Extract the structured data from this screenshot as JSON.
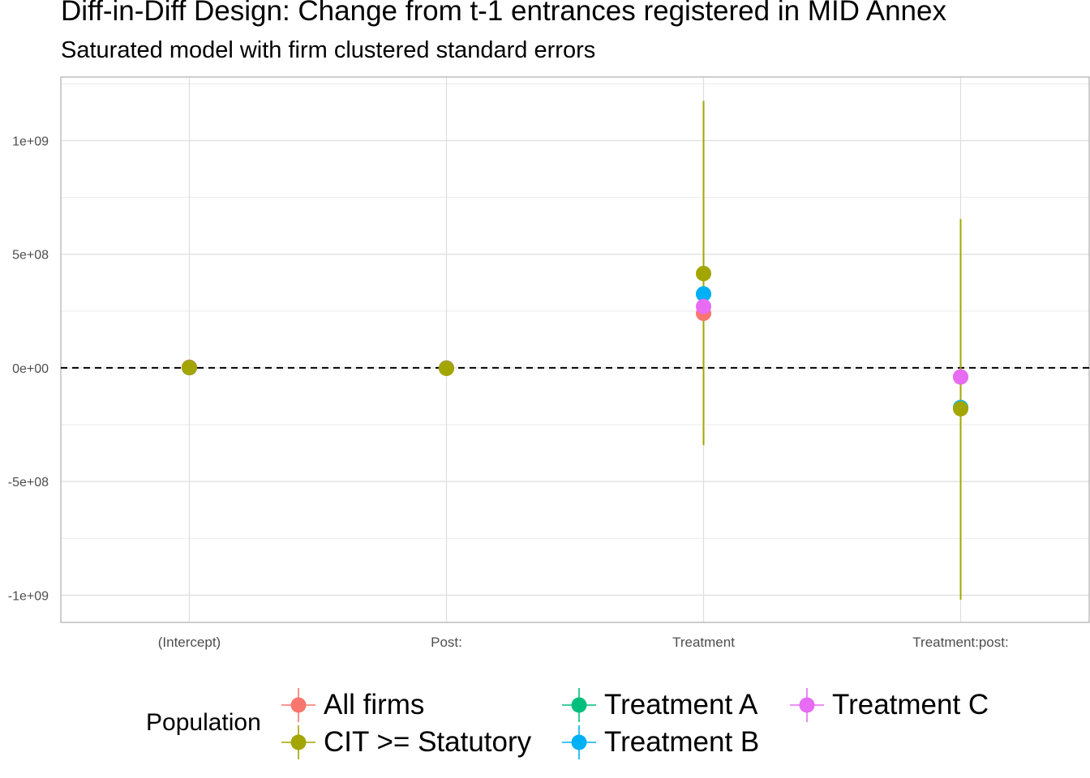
{
  "chart_data": {
    "type": "scatter",
    "title": "Diff-in-Diff Design: Change from t-1 entrances registered in MID Annex",
    "subtitle": "Saturated model with firm clustered standard errors",
    "categories": [
      "(Intercept)",
      "Post:",
      "Treatment",
      "Treatment:post:"
    ],
    "ylim": [
      -1120000000.0,
      1280000000.0
    ],
    "y_ticks": [
      {
        "value": 1000000000.0,
        "label": "1e+09"
      },
      {
        "value": 500000000.0,
        "label": "5e+08"
      },
      {
        "value": 0,
        "label": "0e+00"
      },
      {
        "value": -500000000.0,
        "label": "-5e+08"
      },
      {
        "value": -1000000000.0,
        "label": "-1e+09"
      }
    ],
    "reference_line": {
      "value": 0,
      "style": "dashed"
    },
    "grid": true,
    "legend": {
      "title": "Population",
      "position": "bottom"
    },
    "series": [
      {
        "name": "All firms",
        "color": "#F8766D",
        "values": [
          3000000,
          -1000000,
          240000000,
          -40000000
        ],
        "ci": [
          null,
          null,
          null,
          null
        ]
      },
      {
        "name": "Treatment A",
        "color": "#00BF7D",
        "values": [
          1000000,
          -1000000,
          325000000,
          -175000000
        ],
        "ci": [
          null,
          null,
          null,
          null
        ]
      },
      {
        "name": "Treatment B",
        "color": "#00B0F6",
        "values": [
          1000000,
          -1000000,
          325000000,
          -175000000
        ],
        "ci": [
          null,
          null,
          null,
          null
        ]
      },
      {
        "name": "Treatment C",
        "color": "#E76BF3",
        "values": [
          1000000,
          -1000000,
          270000000,
          -40000000
        ],
        "ci": [
          null,
          null,
          null,
          null
        ]
      },
      {
        "name": "CIT >= Statutory",
        "color": "#A3A500",
        "values": [
          1000000,
          -2000000,
          415000000,
          -180000000
        ],
        "ci": [
          null,
          null,
          [
            -340000000,
            1175000000
          ],
          [
            -1020000000,
            655000000
          ]
        ]
      }
    ]
  },
  "legend_items": [
    {
      "name": "All firms",
      "color": "#F8766D"
    },
    {
      "name": "CIT >= Statutory",
      "color": "#A3A500"
    },
    {
      "name": "Treatment A",
      "color": "#00BF7D"
    },
    {
      "name": "Treatment B",
      "color": "#00B0F6"
    },
    {
      "name": "Treatment C",
      "color": "#E76BF3"
    }
  ]
}
